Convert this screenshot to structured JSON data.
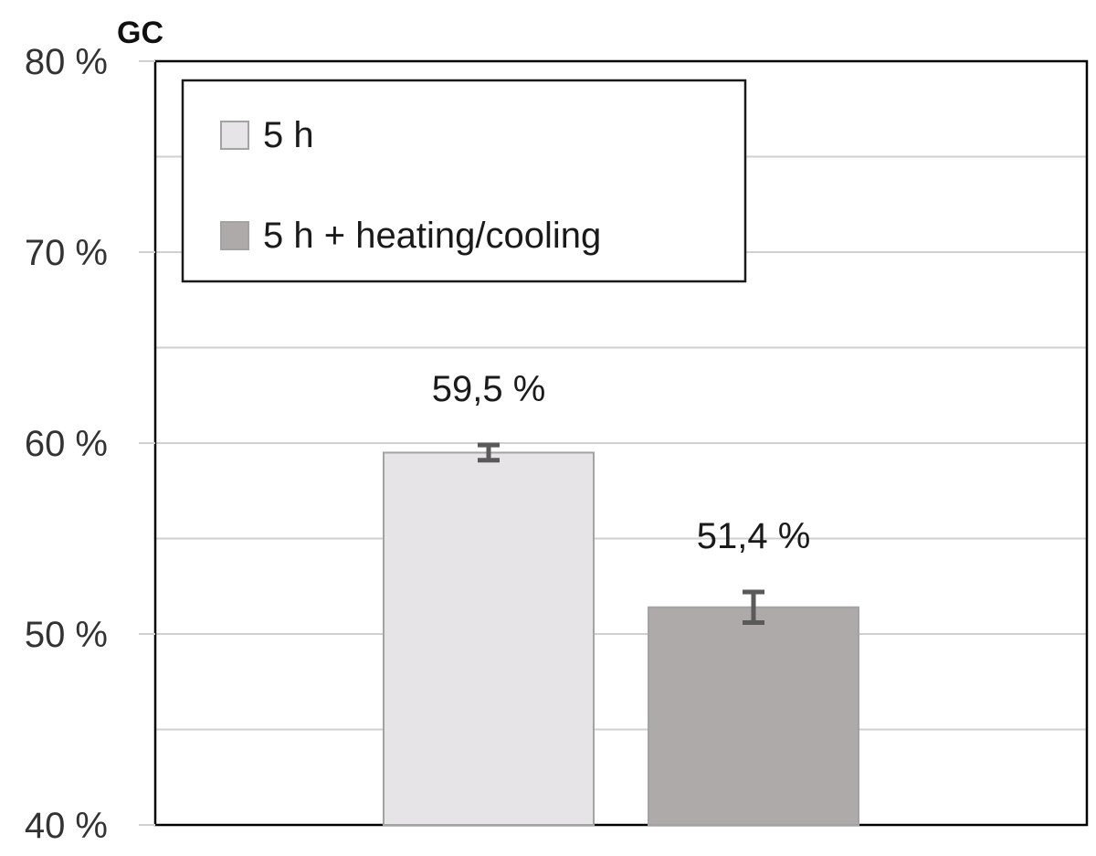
{
  "chart_data": {
    "type": "bar",
    "ylabel": "GC",
    "ylim": [
      40,
      80
    ],
    "y_ticks": [
      40,
      50,
      60,
      70,
      80
    ],
    "y_tick_labels": [
      "40 %",
      "50 %",
      "60 %",
      "70 %",
      "80 %"
    ],
    "grid": true,
    "legend_position": "top-left",
    "series": [
      {
        "name": "5 h",
        "value": 59.5,
        "error": 0.4,
        "label": "59,5 %",
        "color": "#e6e4e6"
      },
      {
        "name": "5 h + heating/cooling",
        "value": 51.4,
        "error": 0.8,
        "label": "51,4 %",
        "color": "#aeaaaa"
      }
    ]
  }
}
